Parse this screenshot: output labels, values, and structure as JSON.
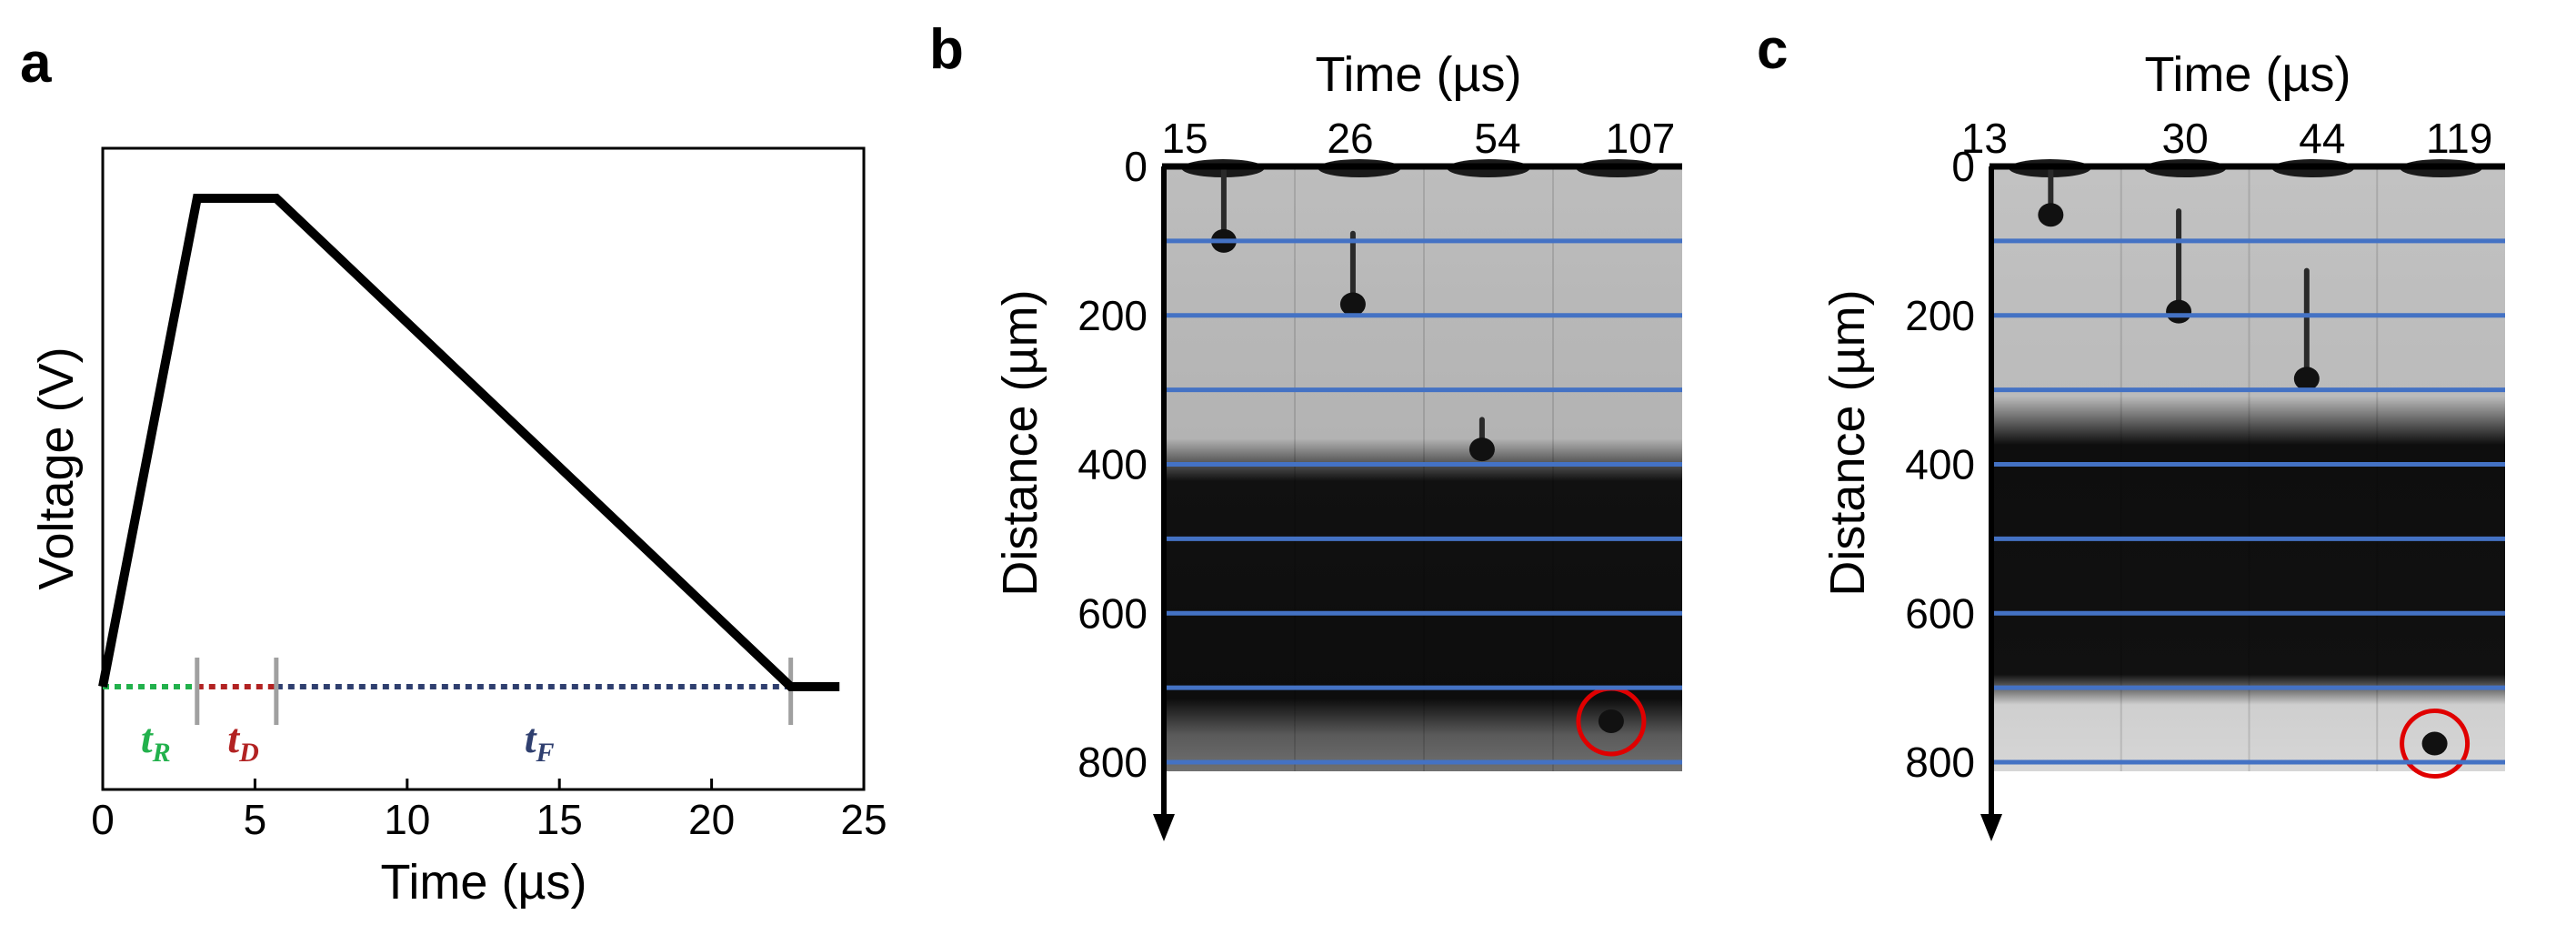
{
  "colors": {
    "tR": "#22b14c",
    "tD": "#b22222",
    "tF": "#2f3f6f",
    "guide": "#4472c4",
    "marker": "#e00000",
    "separator": "#a0a0a0"
  },
  "chart_data": [
    {
      "panel": "a",
      "type": "line",
      "xlabel": "Time (µs)",
      "ylabel": "Voltage (V)",
      "xlim": [
        0,
        25
      ],
      "xticks": [
        "0",
        "5",
        "10",
        "15",
        "20",
        "25"
      ],
      "series": [
        {
          "x": [
            0,
            3.1,
            5.7,
            22.6,
            24.2
          ],
          "y": [
            0,
            1,
            1,
            0,
            0
          ]
        }
      ],
      "phases": [
        {
          "label": "t",
          "sub": "R",
          "start": 0,
          "end": 3.1,
          "color_key": "tR"
        },
        {
          "label": "t",
          "sub": "D",
          "start": 3.1,
          "end": 5.7,
          "color_key": "tD"
        },
        {
          "label": "t",
          "sub": "F",
          "start": 5.7,
          "end": 22.6,
          "color_key": "tF"
        }
      ]
    },
    {
      "panel": "b",
      "type": "image_sequence",
      "xlabel": "Time (µs)",
      "ylabel": "Distance (µm)",
      "times": [
        "15",
        "26",
        "54",
        "107"
      ],
      "ylim": [
        0,
        800
      ],
      "yticks": [
        "0",
        "200",
        "400",
        "600",
        "800"
      ],
      "gridlines": [
        100,
        200,
        300,
        400,
        500,
        600,
        700,
        800
      ],
      "bands": {
        "upper_end": 410,
        "dark_start": 410,
        "dark_end": 700
      },
      "droplets": [
        {
          "frame": 0,
          "distance": 100,
          "stem_from": 0
        },
        {
          "frame": 1,
          "distance": 185,
          "stem_from": 90
        },
        {
          "frame": 2,
          "distance": 380,
          "stem_from": 340
        },
        {
          "frame": 3,
          "distance": 745,
          "stem_from": null,
          "circled": true
        }
      ]
    },
    {
      "panel": "c",
      "type": "image_sequence",
      "xlabel": "Time (µs)",
      "ylabel": "Distance (µm)",
      "times": [
        "13",
        "30",
        "44",
        "119"
      ],
      "ylim": [
        0,
        800
      ],
      "yticks": [
        "0",
        "200",
        "400",
        "600",
        "800"
      ],
      "gridlines": [
        100,
        200,
        300,
        400,
        500,
        600,
        700,
        800
      ],
      "bands": {
        "upper_end": 340,
        "dark_start": 340,
        "dark_end": 690
      },
      "droplets": [
        {
          "frame": 0,
          "distance": 65,
          "stem_from": 0
        },
        {
          "frame": 1,
          "distance": 195,
          "stem_from": 60
        },
        {
          "frame": 2,
          "distance": 285,
          "stem_from": 140
        },
        {
          "frame": 3,
          "distance": 775,
          "stem_from": null,
          "circled": true
        }
      ]
    }
  ]
}
